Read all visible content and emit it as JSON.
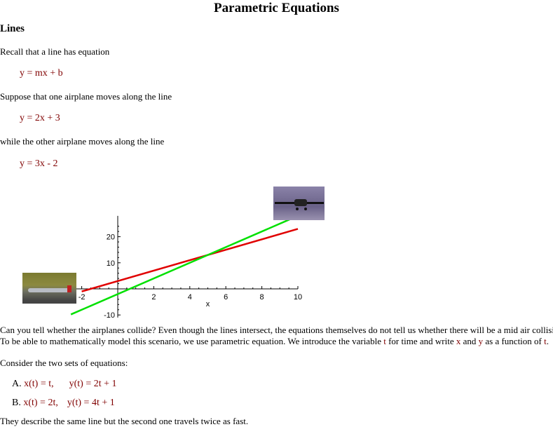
{
  "title": "Parametric Equations",
  "section": "Lines",
  "p1": "Recall that a line has equation",
  "eq1": "y  =  mx + b",
  "p2": "Suppose that one airplane moves along the line",
  "eq2": "y  =  2x + 3",
  "p3": "while the other airplane moves along the line",
  "eq3": "y  =  3x - 2",
  "p4a": "Can you tell whether the airplanes collide?  Even though the lines intersect, the equations themselves do not tell us whether there will be a mid air collision.",
  "p4b_1": " To be able to mathematically model this scenario, we use parametric equation.  We introduce the variable ",
  "p4b_t": "t",
  "p4b_2": " for time and write ",
  "p4b_x": "x",
  "p4b_3": " and ",
  "p4b_y": "y",
  "p4b_4": " as a function of ",
  "p4b_t2": "t",
  "p4b_5": ".",
  "p5": "Consider the two sets of equations:",
  "optA": {
    "label": "A. ",
    "x": "x(t) = t,",
    "y": "y(t) = 2t + 1"
  },
  "optB": {
    "label": "B. ",
    "x": "x(t) = 2t,",
    "y": "y(t) = 4t + 1"
  },
  "p6": "They describe the same line but the second one travels twice as fast.",
  "chart_data": {
    "type": "line",
    "xlabel": "x",
    "xlim": [
      -2.6,
      10
    ],
    "ylim": [
      -11,
      28
    ],
    "xticks": [
      "-2",
      "2",
      "4",
      "6",
      "8",
      "10"
    ],
    "yticks": [
      "20",
      "10",
      "-10"
    ],
    "series": [
      {
        "equation": "y = 2x + 3",
        "color": "#e00000",
        "x": [
          -2,
          10
        ],
        "y": [
          -1,
          23
        ]
      },
      {
        "equation": "y = 3x - 2",
        "color": "#00e000",
        "x": [
          -2.6,
          9.6
        ],
        "y": [
          -9.8,
          26.8
        ]
      }
    ]
  }
}
